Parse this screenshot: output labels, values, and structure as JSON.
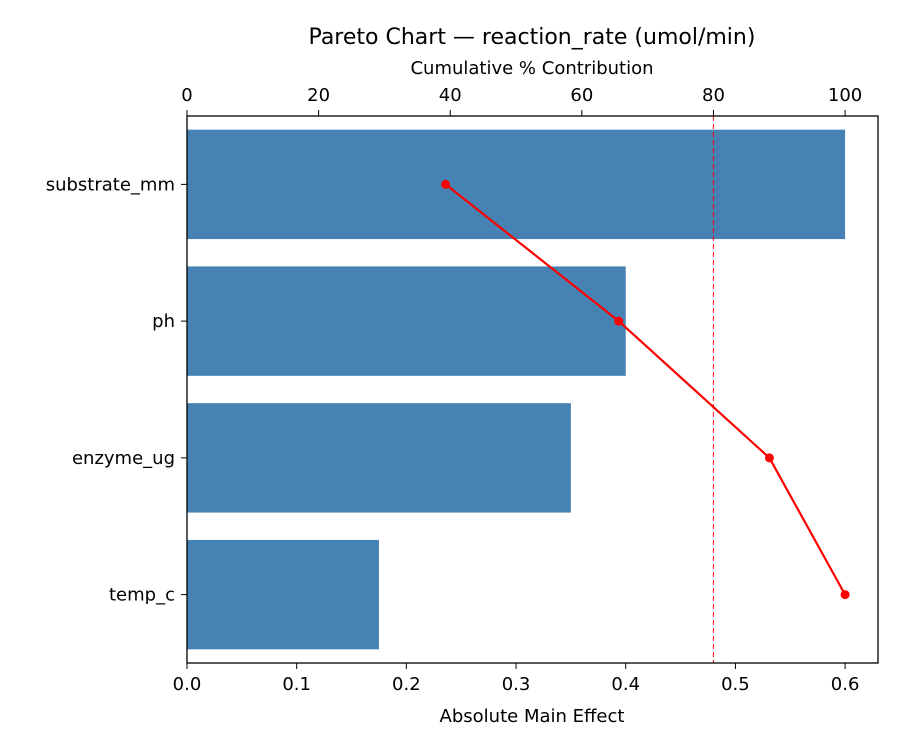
{
  "chart_data": {
    "type": "bar",
    "orientation": "horizontal",
    "title": "Pareto Chart — reaction_rate (umol/min)",
    "xlabel": "Absolute Main Effect",
    "x2label": "Cumulative % Contribution",
    "categories": [
      "substrate_mm",
      "ph",
      "enzyme_ug",
      "temp_c"
    ],
    "values": [
      0.6,
      0.4,
      0.35,
      0.175
    ],
    "cumulative_percent": [
      39.3,
      65.6,
      88.5,
      100
    ],
    "threshold_percent": 80,
    "xlim": [
      0,
      0.63
    ],
    "x2lim": [
      0,
      105
    ],
    "xticks": [
      "0.0",
      "0.1",
      "0.2",
      "0.3",
      "0.4",
      "0.5",
      "0.6"
    ],
    "x2ticks": [
      "0",
      "20",
      "40",
      "60",
      "80",
      "100"
    ],
    "colors": {
      "bar": "#4682b4",
      "line": "#ff0000",
      "threshold": "#ff0000"
    }
  }
}
